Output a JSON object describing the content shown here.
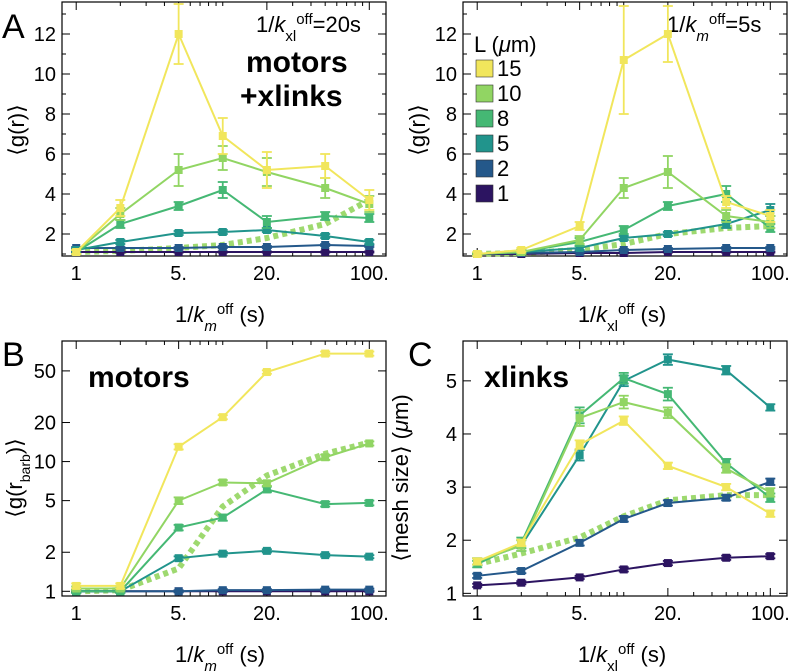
{
  "panel_letters": [
    "A",
    "B",
    "C"
  ],
  "legend": {
    "title": "L (μm)",
    "entries": [
      {
        "label": "15",
        "color": "#f1e65c"
      },
      {
        "label": "10",
        "color": "#91d563"
      },
      {
        "label": "8",
        "color": "#45b874"
      },
      {
        "label": "5",
        "color": "#21948c"
      },
      {
        "label": "2",
        "color": "#24588a"
      },
      {
        "label": "1",
        "color": "#2c1461"
      }
    ]
  },
  "dashed_color": "#9ed96f",
  "chart_data": [
    {
      "id": "A-left",
      "type": "line",
      "panel": "A",
      "xscale": "log",
      "x": [
        1,
        2,
        5,
        10,
        20,
        50,
        100
      ],
      "xticklabels": [
        "1",
        "5.",
        "20.",
        "100."
      ],
      "xticks": [
        1,
        5,
        20,
        100
      ],
      "yticks": [
        2,
        4,
        6,
        8,
        10,
        12
      ],
      "xlim": [
        0.8,
        130
      ],
      "ylim": [
        0.9,
        13.6
      ],
      "xlabel": "1/k_m^off (s)",
      "ylabel": "⟨g(r)⟩",
      "annotation_small": "1/k_xl^off=20s",
      "annotation_big": [
        "motors",
        "+xlinks"
      ],
      "series": [
        {
          "name": "15",
          "values": [
            1.1,
            3.3,
            12.0,
            6.9,
            5.2,
            5.4,
            3.7
          ],
          "err": [
            0.1,
            0.4,
            1.5,
            0.9,
            0.9,
            0.6,
            0.5
          ]
        },
        {
          "name": "10",
          "values": [
            1.1,
            3.0,
            5.2,
            5.8,
            5.1,
            4.3,
            3.5
          ],
          "err": [
            0.1,
            0.3,
            0.8,
            0.6,
            0.7,
            0.5,
            0.4
          ]
        },
        {
          "name": "8",
          "values": [
            1.1,
            2.5,
            3.4,
            4.2,
            2.6,
            2.9,
            2.8
          ],
          "err": [
            0.1,
            0.2,
            0.2,
            0.4,
            0.3,
            0.2,
            0.2
          ]
        },
        {
          "name": "5",
          "values": [
            1.2,
            1.6,
            2.05,
            2.1,
            2.2,
            1.9,
            1.6
          ],
          "err": [
            0.1,
            0.1,
            0.1,
            0.1,
            0.1,
            0.1,
            0.1
          ]
        },
        {
          "name": "2",
          "values": [
            1.3,
            1.3,
            1.3,
            1.35,
            1.35,
            1.45,
            1.4
          ],
          "err": [
            0.05,
            0.05,
            0.05,
            0.05,
            0.05,
            0.05,
            0.05
          ]
        },
        {
          "name": "1",
          "values": [
            1.1,
            1.1,
            1.1,
            1.1,
            1.1,
            1.1,
            1.1
          ],
          "err": [
            0.03,
            0.03,
            0.03,
            0.03,
            0.03,
            0.03,
            0.03
          ]
        }
      ],
      "dashed": {
        "x": [
          1,
          2,
          5,
          10,
          20,
          50,
          100
        ],
        "values": [
          1.1,
          1.15,
          1.3,
          1.45,
          1.8,
          2.5,
          3.7
        ]
      }
    },
    {
      "id": "A-right",
      "type": "line",
      "panel": "A",
      "xscale": "log",
      "x": [
        1,
        2,
        5,
        10,
        20,
        50,
        100
      ],
      "xticklabels": [
        "1",
        "5.",
        "20.",
        "100."
      ],
      "xticks": [
        1,
        5,
        20,
        100
      ],
      "yticks": [
        2,
        4,
        6,
        8,
        10,
        12
      ],
      "xlim": [
        0.8,
        130
      ],
      "ylim": [
        0.9,
        13.6
      ],
      "xlabel": "1/k_xl^off (s)",
      "ylabel": "⟨g(r)⟩",
      "annotation_small": "1/k_m^off=5s",
      "series": [
        {
          "name": "15",
          "values": [
            1.0,
            1.2,
            2.4,
            10.7,
            12.0,
            3.6,
            2.9
          ],
          "err": [
            0.1,
            0.1,
            0.2,
            2.7,
            1.4,
            0.3,
            0.3
          ]
        },
        {
          "name": "10",
          "values": [
            1.0,
            1.1,
            1.7,
            4.3,
            5.1,
            2.9,
            2.6
          ],
          "err": [
            0.05,
            0.1,
            0.2,
            0.5,
            0.8,
            0.3,
            0.3
          ]
        },
        {
          "name": "8",
          "values": [
            1.0,
            1.1,
            1.6,
            2.2,
            3.4,
            4.0,
            2.3
          ],
          "err": [
            0.05,
            0.1,
            0.2,
            0.2,
            0.2,
            0.4,
            0.2
          ]
        },
        {
          "name": "5",
          "values": [
            1.0,
            1.1,
            1.3,
            1.8,
            2.0,
            2.5,
            3.2
          ],
          "err": [
            0.05,
            0.05,
            0.1,
            0.1,
            0.1,
            0.2,
            0.3
          ]
        },
        {
          "name": "2",
          "values": [
            1.0,
            1.05,
            1.1,
            1.2,
            1.25,
            1.3,
            1.3
          ],
          "err": [
            0.03,
            0.03,
            0.03,
            0.05,
            0.05,
            0.05,
            0.05
          ]
        },
        {
          "name": "1",
          "values": [
            1.0,
            1.0,
            1.05,
            1.05,
            1.1,
            1.1,
            1.1
          ],
          "err": [
            0.03,
            0.03,
            0.03,
            0.03,
            0.03,
            0.03,
            0.03
          ]
        }
      ],
      "dashed": {
        "x": [
          1,
          2,
          5,
          10,
          20,
          50,
          100
        ],
        "values": [
          1.0,
          1.05,
          1.2,
          1.5,
          2.0,
          2.3,
          2.4
        ]
      }
    },
    {
      "id": "B",
      "type": "line",
      "panel": "B",
      "xscale": "log",
      "yscale": "log",
      "x": [
        1,
        2,
        5,
        10,
        20,
        50,
        100
      ],
      "xticklabels": [
        "1",
        "5.",
        "20.",
        "100."
      ],
      "xticks": [
        1,
        5,
        20,
        100
      ],
      "yticks": [
        1,
        2,
        5,
        10,
        20,
        50
      ],
      "xlim": [
        0.8,
        130
      ],
      "ylim": [
        0.92,
        85
      ],
      "xlabel": "1/k_m^off (s)",
      "ylabel": "⟨g(r_barb)⟩",
      "annotation_big": [
        "motors"
      ],
      "series": [
        {
          "name": "15",
          "values": [
            1.1,
            1.1,
            13.0,
            22.0,
            49.0,
            68.0,
            68.0
          ],
          "err": [
            0.05,
            0.05,
            0.6,
            0.8,
            1.5,
            2.5,
            2.5
          ]
        },
        {
          "name": "10",
          "values": [
            1.05,
            1.05,
            5.0,
            6.9,
            6.8,
            10.8,
            13.8
          ],
          "err": [
            0.04,
            0.04,
            0.3,
            0.3,
            0.3,
            0.5,
            0.5
          ]
        },
        {
          "name": "8",
          "values": [
            1.0,
            1.0,
            3.1,
            3.7,
            6.1,
            4.7,
            4.8
          ],
          "err": [
            0.03,
            0.03,
            0.15,
            0.2,
            0.3,
            0.2,
            0.2
          ]
        },
        {
          "name": "5",
          "values": [
            1.0,
            1.0,
            1.8,
            1.95,
            2.05,
            1.9,
            1.85
          ],
          "err": [
            0.02,
            0.02,
            0.06,
            0.06,
            0.06,
            0.05,
            0.05
          ]
        },
        {
          "name": "2",
          "values": [
            1.0,
            1.0,
            1.0,
            1.02,
            1.02,
            1.03,
            1.03
          ],
          "err": [
            0.02,
            0.02,
            0.02,
            0.02,
            0.02,
            0.02,
            0.02
          ]
        },
        {
          "name": "1",
          "values": [
            1.0,
            1.0,
            1.0,
            1.0,
            1.0,
            1.0,
            1.0
          ],
          "err": [
            0.01,
            0.01,
            0.01,
            0.01,
            0.01,
            0.01,
            0.01
          ]
        }
      ],
      "dashed": {
        "x": [
          1,
          2,
          5,
          10,
          20,
          50,
          100
        ],
        "values": [
          1.0,
          1.02,
          1.5,
          4.5,
          7.8,
          11.5,
          14.0
        ]
      }
    },
    {
      "id": "C",
      "type": "line",
      "panel": "C",
      "xscale": "log",
      "x": [
        1,
        2,
        5,
        10,
        20,
        50,
        100
      ],
      "xticklabels": [
        "1",
        "5.",
        "20.",
        "100."
      ],
      "xticks": [
        1,
        5,
        20,
        100
      ],
      "yticks": [
        1,
        2,
        3,
        4,
        5
      ],
      "xlim": [
        0.8,
        130
      ],
      "ylim": [
        0.95,
        5.75
      ],
      "xlabel": "1/k_xl^off (s)",
      "ylabel": "⟨mesh size⟩ (μm)",
      "annotation_big": [
        "xlinks"
      ],
      "series": [
        {
          "name": "15",
          "values": [
            1.6,
            1.95,
            3.8,
            4.25,
            3.4,
            3.0,
            2.5
          ],
          "err": [
            0.06,
            0.06,
            0.08,
            0.08,
            0.06,
            0.06,
            0.06
          ]
        },
        {
          "name": "10",
          "values": [
            1.6,
            1.9,
            4.3,
            4.6,
            4.4,
            3.35,
            2.9
          ],
          "err": [
            0.06,
            0.1,
            0.15,
            0.12,
            0.1,
            0.08,
            0.08
          ]
        },
        {
          "name": "8",
          "values": [
            1.55,
            1.95,
            4.35,
            5.05,
            4.75,
            3.45,
            2.8
          ],
          "err": [
            0.06,
            0.1,
            0.15,
            0.1,
            0.12,
            0.08,
            0.08
          ]
        },
        {
          "name": "5",
          "values": [
            1.6,
            1.9,
            3.6,
            5.0,
            5.4,
            5.2,
            4.5
          ],
          "err": [
            0.06,
            0.1,
            0.1,
            0.1,
            0.1,
            0.08,
            0.06
          ]
        },
        {
          "name": "2",
          "values": [
            1.33,
            1.42,
            1.95,
            2.4,
            2.7,
            2.8,
            3.1
          ],
          "err": [
            0.04,
            0.04,
            0.05,
            0.05,
            0.05,
            0.05,
            0.06
          ]
        },
        {
          "name": "1",
          "values": [
            1.15,
            1.2,
            1.3,
            1.45,
            1.57,
            1.67,
            1.7
          ],
          "err": [
            0.03,
            0.03,
            0.03,
            0.04,
            0.04,
            0.04,
            0.04
          ]
        }
      ],
      "dashed": {
        "x": [
          1,
          2,
          5,
          10,
          20,
          50,
          100
        ],
        "values": [
          1.55,
          1.75,
          2.05,
          2.45,
          2.75,
          2.85,
          2.85
        ]
      }
    }
  ]
}
